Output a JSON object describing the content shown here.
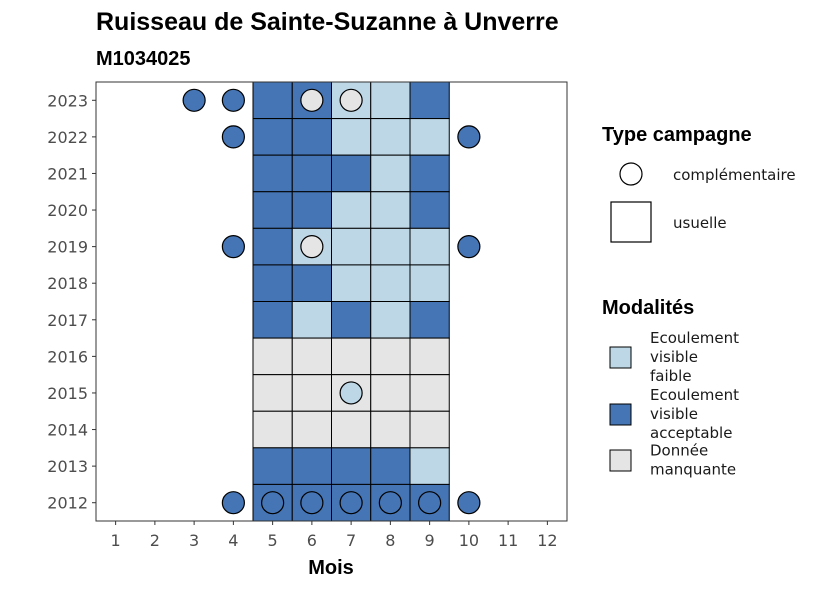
{
  "chart_data": {
    "type": "heatmap",
    "title": "Ruisseau de Sainte-Suzanne à Unverre",
    "subtitle": "M1034025",
    "xlabel": "Mois",
    "ylabel": "",
    "x_ticks": [
      "1",
      "2",
      "3",
      "4",
      "5",
      "6",
      "7",
      "8",
      "9",
      "10",
      "11",
      "12"
    ],
    "y_ticks": [
      "2023",
      "2022",
      "2021",
      "2020",
      "2019",
      "2018",
      "2017",
      "2016",
      "2015",
      "2014",
      "2013",
      "2012"
    ],
    "xlim": [
      0.5,
      12.5
    ],
    "ylim": [
      2011.5,
      2023.5
    ],
    "grid": false,
    "colors": {
      "faible": "#bdd7e7",
      "acceptable": "#4575b4",
      "manquante": "#e5e5e5"
    },
    "legend_campagne": {
      "title": "Type campagne",
      "items": [
        {
          "shape": "circle",
          "label": "complémentaire"
        },
        {
          "shape": "square",
          "label": "usuelle"
        }
      ]
    },
    "legend_modalites": {
      "title": "Modalités",
      "items": [
        {
          "key": "faible",
          "lines": [
            "Ecoulement",
            "visible",
            "faible"
          ]
        },
        {
          "key": "acceptable",
          "lines": [
            "Ecoulement",
            "visible",
            "acceptable"
          ]
        },
        {
          "key": "manquante",
          "lines": [
            "Donnée",
            "manquante"
          ]
        }
      ]
    },
    "tiles": [
      {
        "year": 2023,
        "month": 5,
        "modalite": "acceptable"
      },
      {
        "year": 2023,
        "month": 6,
        "modalite": "acceptable"
      },
      {
        "year": 2023,
        "month": 7,
        "modalite": "faible"
      },
      {
        "year": 2023,
        "month": 8,
        "modalite": "faible"
      },
      {
        "year": 2023,
        "month": 9,
        "modalite": "acceptable"
      },
      {
        "year": 2022,
        "month": 5,
        "modalite": "acceptable"
      },
      {
        "year": 2022,
        "month": 6,
        "modalite": "acceptable"
      },
      {
        "year": 2022,
        "month": 7,
        "modalite": "faible"
      },
      {
        "year": 2022,
        "month": 8,
        "modalite": "faible"
      },
      {
        "year": 2022,
        "month": 9,
        "modalite": "faible"
      },
      {
        "year": 2021,
        "month": 5,
        "modalite": "acceptable"
      },
      {
        "year": 2021,
        "month": 6,
        "modalite": "acceptable"
      },
      {
        "year": 2021,
        "month": 7,
        "modalite": "acceptable"
      },
      {
        "year": 2021,
        "month": 8,
        "modalite": "faible"
      },
      {
        "year": 2021,
        "month": 9,
        "modalite": "acceptable"
      },
      {
        "year": 2020,
        "month": 5,
        "modalite": "acceptable"
      },
      {
        "year": 2020,
        "month": 6,
        "modalite": "acceptable"
      },
      {
        "year": 2020,
        "month": 7,
        "modalite": "faible"
      },
      {
        "year": 2020,
        "month": 8,
        "modalite": "faible"
      },
      {
        "year": 2020,
        "month": 9,
        "modalite": "acceptable"
      },
      {
        "year": 2019,
        "month": 5,
        "modalite": "acceptable"
      },
      {
        "year": 2019,
        "month": 6,
        "modalite": "faible"
      },
      {
        "year": 2019,
        "month": 7,
        "modalite": "faible"
      },
      {
        "year": 2019,
        "month": 8,
        "modalite": "faible"
      },
      {
        "year": 2019,
        "month": 9,
        "modalite": "faible"
      },
      {
        "year": 2018,
        "month": 5,
        "modalite": "acceptable"
      },
      {
        "year": 2018,
        "month": 6,
        "modalite": "acceptable"
      },
      {
        "year": 2018,
        "month": 7,
        "modalite": "faible"
      },
      {
        "year": 2018,
        "month": 8,
        "modalite": "faible"
      },
      {
        "year": 2018,
        "month": 9,
        "modalite": "faible"
      },
      {
        "year": 2017,
        "month": 5,
        "modalite": "acceptable"
      },
      {
        "year": 2017,
        "month": 6,
        "modalite": "faible"
      },
      {
        "year": 2017,
        "month": 7,
        "modalite": "acceptable"
      },
      {
        "year": 2017,
        "month": 8,
        "modalite": "faible"
      },
      {
        "year": 2017,
        "month": 9,
        "modalite": "acceptable"
      },
      {
        "year": 2016,
        "month": 5,
        "modalite": "manquante"
      },
      {
        "year": 2016,
        "month": 6,
        "modalite": "manquante"
      },
      {
        "year": 2016,
        "month": 7,
        "modalite": "manquante"
      },
      {
        "year": 2016,
        "month": 8,
        "modalite": "manquante"
      },
      {
        "year": 2016,
        "month": 9,
        "modalite": "manquante"
      },
      {
        "year": 2015,
        "month": 5,
        "modalite": "manquante"
      },
      {
        "year": 2015,
        "month": 6,
        "modalite": "manquante"
      },
      {
        "year": 2015,
        "month": 7,
        "modalite": "manquante"
      },
      {
        "year": 2015,
        "month": 8,
        "modalite": "manquante"
      },
      {
        "year": 2015,
        "month": 9,
        "modalite": "manquante"
      },
      {
        "year": 2014,
        "month": 5,
        "modalite": "manquante"
      },
      {
        "year": 2014,
        "month": 6,
        "modalite": "manquante"
      },
      {
        "year": 2014,
        "month": 7,
        "modalite": "manquante"
      },
      {
        "year": 2014,
        "month": 8,
        "modalite": "manquante"
      },
      {
        "year": 2014,
        "month": 9,
        "modalite": "manquante"
      },
      {
        "year": 2013,
        "month": 5,
        "modalite": "acceptable"
      },
      {
        "year": 2013,
        "month": 6,
        "modalite": "acceptable"
      },
      {
        "year": 2013,
        "month": 7,
        "modalite": "acceptable"
      },
      {
        "year": 2013,
        "month": 8,
        "modalite": "acceptable"
      },
      {
        "year": 2013,
        "month": 9,
        "modalite": "faible"
      },
      {
        "year": 2012,
        "month": 5,
        "modalite": "acceptable"
      },
      {
        "year": 2012,
        "month": 6,
        "modalite": "acceptable"
      },
      {
        "year": 2012,
        "month": 7,
        "modalite": "acceptable"
      },
      {
        "year": 2012,
        "month": 8,
        "modalite": "acceptable"
      },
      {
        "year": 2012,
        "month": 9,
        "modalite": "acceptable"
      }
    ],
    "points": [
      {
        "year": 2023,
        "month": 3,
        "modalite": "acceptable"
      },
      {
        "year": 2023,
        "month": 4,
        "modalite": "acceptable"
      },
      {
        "year": 2023,
        "month": 6,
        "modalite": "manquante"
      },
      {
        "year": 2023,
        "month": 7,
        "modalite": "manquante"
      },
      {
        "year": 2022,
        "month": 4,
        "modalite": "acceptable"
      },
      {
        "year": 2022,
        "month": 10,
        "modalite": "acceptable"
      },
      {
        "year": 2019,
        "month": 4,
        "modalite": "acceptable"
      },
      {
        "year": 2019,
        "month": 6,
        "modalite": "manquante"
      },
      {
        "year": 2019,
        "month": 10,
        "modalite": "acceptable"
      },
      {
        "year": 2015,
        "month": 7,
        "modalite": "faible"
      },
      {
        "year": 2012,
        "month": 4,
        "modalite": "acceptable"
      },
      {
        "year": 2012,
        "month": 5,
        "modalite": "acceptable"
      },
      {
        "year": 2012,
        "month": 6,
        "modalite": "acceptable"
      },
      {
        "year": 2012,
        "month": 7,
        "modalite": "acceptable"
      },
      {
        "year": 2012,
        "month": 8,
        "modalite": "acceptable"
      },
      {
        "year": 2012,
        "month": 9,
        "modalite": "acceptable"
      },
      {
        "year": 2012,
        "month": 10,
        "modalite": "acceptable"
      }
    ]
  }
}
